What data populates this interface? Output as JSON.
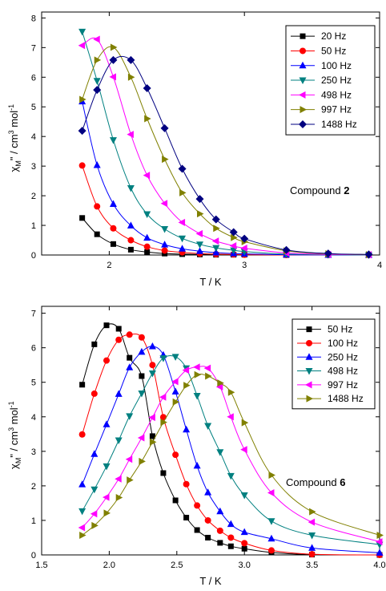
{
  "chart_data": [
    {
      "type": "line",
      "xlabel": "T / K",
      "ylabel": "χ_M\" / cm³ mol⁻¹",
      "xlim": [
        1.5,
        4
      ],
      "ylim": [
        0,
        8.2
      ],
      "xticks": [
        "2",
        "3",
        "4"
      ],
      "xtick_values": [
        2,
        3,
        4
      ],
      "yticks": [
        "0",
        "1",
        "2",
        "3",
        "4",
        "5",
        "6",
        "7",
        "8"
      ],
      "ytick_values": [
        0,
        1,
        2,
        3,
        4,
        5,
        6,
        7,
        8
      ],
      "annotation": {
        "text": "Compound ",
        "bold": "2"
      },
      "legend_position": "top-right",
      "x": [
        1.8,
        1.91,
        2.03,
        2.16,
        2.28,
        2.41,
        2.54,
        2.67,
        2.79,
        2.92,
        3.0,
        3.31,
        3.62,
        3.92
      ],
      "series": [
        {
          "name": "20 Hz",
          "color": "#000000",
          "marker": "square",
          "values": [
            1.25,
            0.7,
            0.37,
            0.18,
            0.1,
            0.05,
            0.03,
            0.02,
            0.01,
            0.01,
            0.01,
            0,
            0,
            0
          ]
        },
        {
          "name": "50 Hz",
          "color": "#ff0000",
          "marker": "circle",
          "values": [
            3.02,
            1.64,
            0.9,
            0.5,
            0.28,
            0.15,
            0.09,
            0.05,
            0.03,
            0.02,
            0.01,
            0,
            0,
            0
          ]
        },
        {
          "name": "100 Hz",
          "color": "#0000ff",
          "marker": "triangle-up",
          "values": [
            5.18,
            3.03,
            1.72,
            0.99,
            0.58,
            0.35,
            0.21,
            0.13,
            0.08,
            0.05,
            0.04,
            0.01,
            0,
            0
          ]
        },
        {
          "name": "250 Hz",
          "color": "#008080",
          "marker": "triangle-down",
          "values": [
            7.54,
            5.88,
            3.88,
            2.26,
            1.38,
            0.88,
            0.56,
            0.36,
            0.24,
            0.16,
            0.12,
            0.03,
            0.01,
            0
          ]
        },
        {
          "name": "498 Hz",
          "color": "#ff00ff",
          "marker": "triangle-left",
          "values": [
            7.07,
            7.28,
            6.01,
            4.07,
            2.69,
            1.74,
            1.1,
            0.72,
            0.47,
            0.31,
            0.23,
            0.07,
            0.02,
            0.01
          ]
        },
        {
          "name": "997 Hz",
          "color": "#808000",
          "marker": "triangle-right",
          "values": [
            5.25,
            6.58,
            7.01,
            6.0,
            4.6,
            3.23,
            2.1,
            1.39,
            0.9,
            0.59,
            0.45,
            0.14,
            0.04,
            0.01
          ]
        },
        {
          "name": "1488 Hz",
          "color": "#000080",
          "marker": "diamond",
          "values": [
            4.19,
            5.57,
            6.58,
            6.58,
            5.63,
            4.28,
            2.91,
            1.89,
            1.2,
            0.77,
            0.55,
            0.17,
            0.05,
            0.02
          ]
        }
      ]
    },
    {
      "type": "line",
      "xlabel": "T / K",
      "ylabel": "χ_M\" / cm³ mol⁻¹",
      "xlim": [
        1.5,
        4.0
      ],
      "ylim": [
        0,
        7.2
      ],
      "xticks": [
        "1.5",
        "2.0",
        "2.5",
        "3.0",
        "3.5",
        "4.0"
      ],
      "xtick_values": [
        1.5,
        2.0,
        2.5,
        3.0,
        3.5,
        4.0
      ],
      "yticks": [
        "0",
        "1",
        "2",
        "3",
        "4",
        "5",
        "6",
        "7"
      ],
      "ytick_values": [
        0,
        1,
        2,
        3,
        4,
        5,
        6,
        7
      ],
      "annotation": {
        "text": "Compound ",
        "bold": "6"
      },
      "legend_position": "top-right",
      "x": [
        1.8,
        1.89,
        1.98,
        2.07,
        2.15,
        2.24,
        2.32,
        2.4,
        2.49,
        2.57,
        2.65,
        2.73,
        2.82,
        2.9,
        3.0,
        3.2,
        3.5,
        4.0
      ],
      "series": [
        {
          "name": "50 Hz",
          "color": "#000000",
          "marker": "square",
          "values": [
            4.93,
            6.1,
            6.65,
            6.55,
            5.71,
            5.18,
            3.44,
            2.37,
            1.58,
            1.08,
            0.72,
            0.5,
            0.35,
            0.25,
            0.18,
            0.07,
            0.01,
            0
          ]
        },
        {
          "name": "100 Hz",
          "color": "#ff0000",
          "marker": "circle",
          "values": [
            3.49,
            4.67,
            5.63,
            6.23,
            6.38,
            6.3,
            5.5,
            3.99,
            2.9,
            2.05,
            1.43,
            1.0,
            0.7,
            0.5,
            0.34,
            0.13,
            0.02,
            0
          ]
        },
        {
          "name": "250 Hz",
          "color": "#0000ff",
          "marker": "triangle-up",
          "values": [
            2.04,
            2.92,
            3.78,
            4.66,
            5.43,
            5.88,
            6.04,
            5.79,
            4.73,
            3.63,
            2.58,
            1.81,
            1.26,
            0.89,
            0.66,
            0.47,
            0.2,
            0.06
          ]
        },
        {
          "name": "498 Hz",
          "color": "#008080",
          "marker": "triangle-down",
          "values": [
            1.27,
            1.9,
            2.57,
            3.32,
            4.02,
            4.68,
            5.26,
            5.7,
            5.74,
            5.41,
            4.61,
            3.74,
            2.98,
            2.29,
            1.73,
            0.98,
            0.57,
            0.3
          ]
        },
        {
          "name": "997 Hz",
          "color": "#ff00ff",
          "marker": "triangle-left",
          "values": [
            0.79,
            1.19,
            1.67,
            2.2,
            2.77,
            3.39,
            3.98,
            4.57,
            5.02,
            5.35,
            5.44,
            5.41,
            4.87,
            4.0,
            3.05,
            1.8,
            0.95,
            0.38
          ]
        },
        {
          "name": "1488 Hz",
          "color": "#808000",
          "marker": "triangle-right",
          "values": [
            0.57,
            0.85,
            1.21,
            1.66,
            2.17,
            2.71,
            3.27,
            3.84,
            4.43,
            4.91,
            5.22,
            5.18,
            4.98,
            4.71,
            3.83,
            2.31,
            1.25,
            0.57
          ]
        }
      ]
    }
  ]
}
